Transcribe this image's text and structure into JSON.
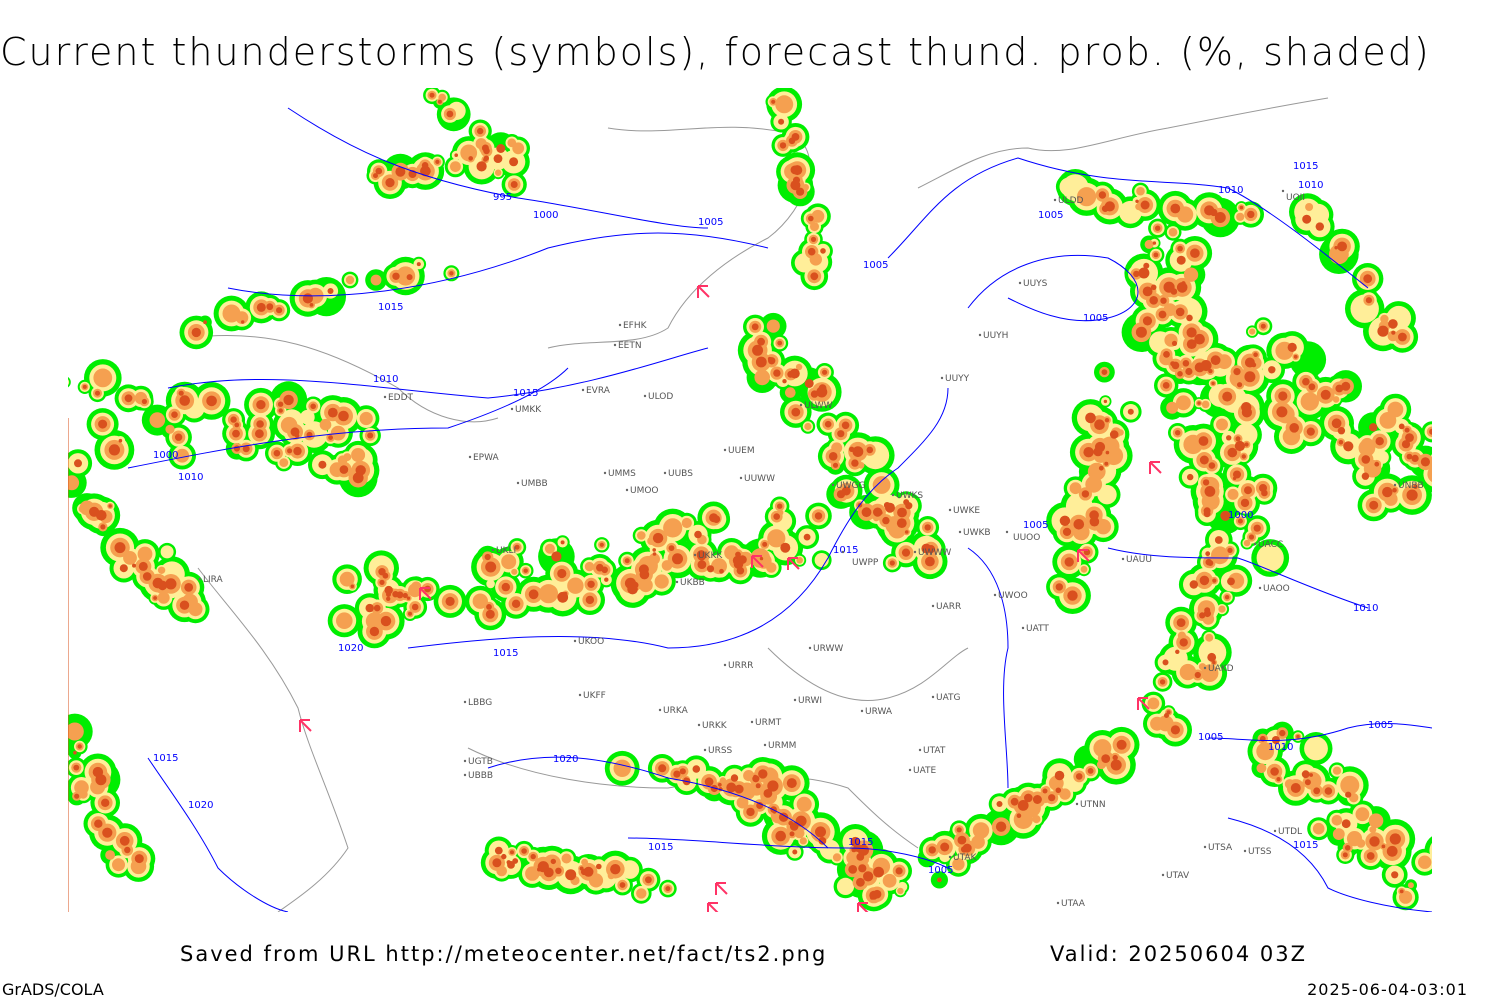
{
  "title": "Current thunderstorms (symbols), forecast thund. prob. (%, shaded)",
  "footer": {
    "saved": "Saved from URL http://meteocenter.net/fact/ts2.png",
    "valid": "Valid: 20250604 03Z",
    "software": "GrADS/COLA",
    "timestamp": "2025-06-04-03:01"
  },
  "colors": {
    "prob_low": "#00ee00",
    "prob_mid": "#ffee99",
    "prob_high": "#f5a050",
    "prob_max": "#d9501e",
    "isobar": "#0000ff",
    "storm_symbol": "#ff3366",
    "coastline": "#999999"
  },
  "isobar_labels": [
    "995",
    "1000",
    "1005",
    "1005",
    "1010",
    "1015",
    "1015",
    "1005",
    "1010",
    "1005",
    "1000",
    "1010",
    "1000",
    "1015",
    "1010",
    "1015",
    "1020",
    "1015",
    "1020",
    "1020",
    "1015",
    "1015",
    "1005",
    "1005",
    "1010",
    "1010",
    "1005",
    "1015",
    "1005",
    "1015"
  ],
  "stations": [
    "ULDD",
    "UUYS",
    "UUYH",
    "UUYY",
    "EFHK",
    "EETN",
    "EVRA",
    "ULOD",
    "UMKK",
    "EDDT",
    "EPWA",
    "UMBB",
    "UMMS",
    "UMOO",
    "UUBS",
    "UUEM",
    "UUWW",
    "ULWW",
    "UWGG",
    "UWKS",
    "UWKE",
    "UWKB",
    "UWPP",
    "UWWW",
    "UKKK",
    "UKLI",
    "UKBB",
    "UKOO",
    "URRR",
    "UKFF",
    "URKA",
    "URKK",
    "URMT",
    "URMM",
    "URSS",
    "UBBB",
    "UGTB",
    "LBBG",
    "LIRA",
    "UUOO",
    "UARR",
    "UWOO",
    "UATT",
    "UATG",
    "UAUU",
    "UTNN",
    "UTAK",
    "UTSA",
    "UTSS",
    "UTDL",
    "UTAV",
    "UTAA",
    "UACC",
    "UAKD",
    "UAOO",
    "UNBB",
    "UOII",
    "URWI",
    "URWA",
    "URWW",
    "UATE",
    "UTAT"
  ]
}
